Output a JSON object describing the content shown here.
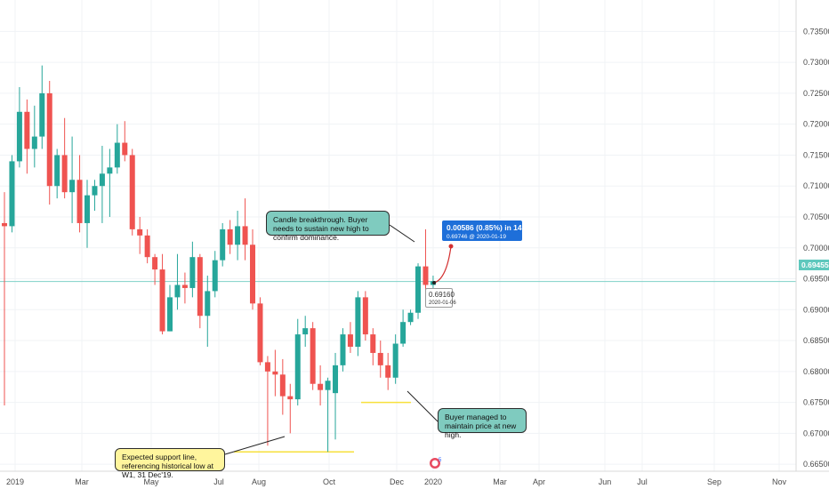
{
  "chart_data": {
    "type": "candlestick",
    "timeframe": "weekly",
    "x_tick_labels": [
      "2019",
      "Mar",
      "May",
      "Jul",
      "Aug",
      "Oct",
      "Dec",
      "2020",
      "Mar",
      "Apr",
      "Jun",
      "Jul",
      "Sep",
      "Nov"
    ],
    "y_tick_labels": [
      "0.73500",
      "0.73000",
      "0.72500",
      "0.72000",
      "0.71500",
      "0.71000",
      "0.70500",
      "0.70000",
      "0.69500",
      "0.69000",
      "0.68500",
      "0.68000",
      "0.67500",
      "0.67000",
      "0.66500"
    ],
    "ylim": [
      0.6625,
      0.7365
    ],
    "current_price": "0.69455",
    "candles": [
      {
        "o": 0.704,
        "h": 0.709,
        "l": 0.6745,
        "c": 0.7035
      },
      {
        "o": 0.7035,
        "h": 0.715,
        "l": 0.7025,
        "c": 0.714
      },
      {
        "o": 0.714,
        "h": 0.726,
        "l": 0.713,
        "c": 0.722
      },
      {
        "o": 0.722,
        "h": 0.724,
        "l": 0.712,
        "c": 0.716
      },
      {
        "o": 0.716,
        "h": 0.723,
        "l": 0.713,
        "c": 0.718
      },
      {
        "o": 0.718,
        "h": 0.7295,
        "l": 0.716,
        "c": 0.725
      },
      {
        "o": 0.725,
        "h": 0.727,
        "l": 0.707,
        "c": 0.71
      },
      {
        "o": 0.71,
        "h": 0.716,
        "l": 0.708,
        "c": 0.715
      },
      {
        "o": 0.715,
        "h": 0.721,
        "l": 0.708,
        "c": 0.709
      },
      {
        "o": 0.709,
        "h": 0.718,
        "l": 0.704,
        "c": 0.711
      },
      {
        "o": 0.711,
        "h": 0.715,
        "l": 0.7025,
        "c": 0.704
      },
      {
        "o": 0.704,
        "h": 0.711,
        "l": 0.7,
        "c": 0.7085
      },
      {
        "o": 0.7085,
        "h": 0.711,
        "l": 0.706,
        "c": 0.71
      },
      {
        "o": 0.71,
        "h": 0.7165,
        "l": 0.704,
        "c": 0.712
      },
      {
        "o": 0.712,
        "h": 0.716,
        "l": 0.705,
        "c": 0.713
      },
      {
        "o": 0.713,
        "h": 0.72,
        "l": 0.712,
        "c": 0.717
      },
      {
        "o": 0.717,
        "h": 0.7205,
        "l": 0.714,
        "c": 0.715
      },
      {
        "o": 0.715,
        "h": 0.716,
        "l": 0.702,
        "c": 0.703
      },
      {
        "o": 0.703,
        "h": 0.705,
        "l": 0.699,
        "c": 0.702
      },
      {
        "o": 0.702,
        "h": 0.703,
        "l": 0.6975,
        "c": 0.6985
      },
      {
        "o": 0.6985,
        "h": 0.699,
        "l": 0.694,
        "c": 0.6965
      },
      {
        "o": 0.6965,
        "h": 0.699,
        "l": 0.686,
        "c": 0.6865
      },
      {
        "o": 0.6865,
        "h": 0.694,
        "l": 0.6865,
        "c": 0.692
      },
      {
        "o": 0.692,
        "h": 0.699,
        "l": 0.69,
        "c": 0.694
      },
      {
        "o": 0.694,
        "h": 0.696,
        "l": 0.691,
        "c": 0.6935
      },
      {
        "o": 0.6935,
        "h": 0.701,
        "l": 0.692,
        "c": 0.6985
      },
      {
        "o": 0.6985,
        "h": 0.699,
        "l": 0.687,
        "c": 0.689
      },
      {
        "o": 0.689,
        "h": 0.6955,
        "l": 0.684,
        "c": 0.693
      },
      {
        "o": 0.693,
        "h": 0.6995,
        "l": 0.692,
        "c": 0.698
      },
      {
        "o": 0.698,
        "h": 0.704,
        "l": 0.697,
        "c": 0.703
      },
      {
        "o": 0.703,
        "h": 0.7045,
        "l": 0.699,
        "c": 0.7005
      },
      {
        "o": 0.7005,
        "h": 0.706,
        "l": 0.698,
        "c": 0.7035
      },
      {
        "o": 0.7035,
        "h": 0.708,
        "l": 0.698,
        "c": 0.7005
      },
      {
        "o": 0.7005,
        "h": 0.703,
        "l": 0.69,
        "c": 0.691
      },
      {
        "o": 0.691,
        "h": 0.692,
        "l": 0.681,
        "c": 0.6815
      },
      {
        "o": 0.6815,
        "h": 0.6825,
        "l": 0.668,
        "c": 0.68
      },
      {
        "o": 0.68,
        "h": 0.6835,
        "l": 0.676,
        "c": 0.6795
      },
      {
        "o": 0.6795,
        "h": 0.682,
        "l": 0.673,
        "c": 0.676
      },
      {
        "o": 0.676,
        "h": 0.678,
        "l": 0.67,
        "c": 0.6755
      },
      {
        "o": 0.6755,
        "h": 0.6885,
        "l": 0.6745,
        "c": 0.686
      },
      {
        "o": 0.686,
        "h": 0.689,
        "l": 0.684,
        "c": 0.687
      },
      {
        "o": 0.687,
        "h": 0.688,
        "l": 0.677,
        "c": 0.678
      },
      {
        "o": 0.678,
        "h": 0.681,
        "l": 0.6745,
        "c": 0.677
      },
      {
        "o": 0.677,
        "h": 0.679,
        "l": 0.667,
        "c": 0.6785
      },
      {
        "o": 0.6765,
        "h": 0.683,
        "l": 0.669,
        "c": 0.681
      },
      {
        "o": 0.681,
        "h": 0.687,
        "l": 0.68,
        "c": 0.686
      },
      {
        "o": 0.686,
        "h": 0.688,
        "l": 0.683,
        "c": 0.684
      },
      {
        "o": 0.684,
        "h": 0.693,
        "l": 0.6825,
        "c": 0.692
      },
      {
        "o": 0.692,
        "h": 0.693,
        "l": 0.685,
        "c": 0.686
      },
      {
        "o": 0.686,
        "h": 0.687,
        "l": 0.681,
        "c": 0.683
      },
      {
        "o": 0.683,
        "h": 0.685,
        "l": 0.679,
        "c": 0.681
      },
      {
        "o": 0.681,
        "h": 0.683,
        "l": 0.677,
        "c": 0.679
      },
      {
        "o": 0.679,
        "h": 0.686,
        "l": 0.678,
        "c": 0.6845
      },
      {
        "o": 0.6845,
        "h": 0.69,
        "l": 0.684,
        "c": 0.688
      },
      {
        "o": 0.688,
        "h": 0.69,
        "l": 0.6875,
        "c": 0.6895
      },
      {
        "o": 0.6895,
        "h": 0.6975,
        "l": 0.6885,
        "c": 0.697
      },
      {
        "o": 0.697,
        "h": 0.703,
        "l": 0.692,
        "c": 0.694
      },
      {
        "o": 0.694,
        "h": 0.6955,
        "l": 0.6935,
        "c": 0.6946
      }
    ],
    "annotations": {
      "breakthrough": "Candle breakthrough. Buyer needs to sustain new high to confirm dominance.",
      "buyer": "Buyer managed to maintain price at new high.",
      "support": "Expected support line, referencing historical low at W1, 31 Dec'19.",
      "measure_line1": "0.00586 (0.85%) in 14d",
      "measure_line2": "0.69746 @ 2020-01-19",
      "low_value": "0.69160",
      "low_date": "2020-01-06"
    },
    "colors": {
      "up": "#26a69a",
      "down": "#ef5350",
      "support": "#f7e03c",
      "measure": "#1e6fd9",
      "price_line": "#7fd1c8"
    }
  }
}
